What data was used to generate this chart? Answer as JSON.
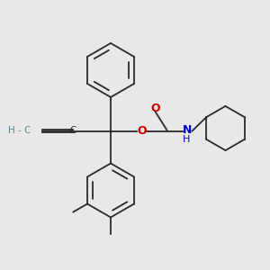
{
  "bg_color": "#e8e8e8",
  "line_color": "#2a2a2a",
  "oxygen_color": "#cc0000",
  "nitrogen_color": "#0000cc",
  "alkyne_color": "#5b8a8a",
  "figsize": [
    3.0,
    3.0
  ],
  "dpi": 100,
  "lw": 1.3,
  "xlim": [
    0,
    10
  ],
  "ylim": [
    0,
    10
  ]
}
